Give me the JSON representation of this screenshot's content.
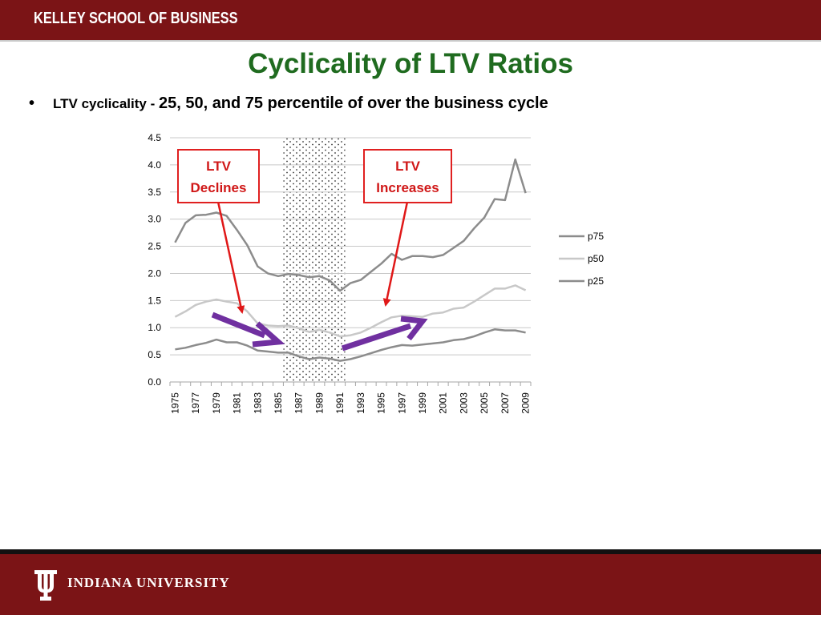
{
  "header": {
    "school": "KELLEY SCHOOL OF BUSINESS"
  },
  "title": "Cyclicality of LTV Ratios",
  "bullet": {
    "marker": "•",
    "lead": "LTV cyclicality - ",
    "rest": "25, 50, and 75 percentile of over the business cycle"
  },
  "callouts": {
    "left": {
      "line1": "LTV",
      "line2": "Declines"
    },
    "right": {
      "line1": "LTV",
      "line2": "Increases"
    }
  },
  "footer": {
    "university": "INDIANA UNIVERSITY"
  },
  "colors": {
    "brand": "#7b1416",
    "title": "#1f6b1f",
    "callout": "#e02020",
    "arrow_red": "#e01818",
    "arrow_purple": "#7030a0",
    "p75": "#8c8c8c",
    "p50": "#c8c8c8",
    "p25": "#8c8c8c"
  },
  "chart_data": {
    "type": "line",
    "title": "",
    "xlabel": "",
    "ylabel": "",
    "x": [
      1975,
      1976,
      1977,
      1978,
      1979,
      1980,
      1981,
      1982,
      1983,
      1984,
      1985,
      1986,
      1987,
      1988,
      1989,
      1990,
      1991,
      1992,
      1993,
      1994,
      1995,
      1996,
      1997,
      1998,
      1999,
      2000,
      2001,
      2002,
      2003,
      2004,
      2005,
      2006,
      2007,
      2008,
      2009
    ],
    "xticks": [
      "1975",
      "1977",
      "1979",
      "1981",
      "1983",
      "1985",
      "1987",
      "1989",
      "1991",
      "1993",
      "1995",
      "1997",
      "1999",
      "2001",
      "2003",
      "2005",
      "2007",
      "2009"
    ],
    "yticks": [
      "0.0",
      "0.5",
      "1.0",
      "1.5",
      "2.0",
      "2.5",
      "3.0",
      "3.5",
      "4.0",
      "4.5"
    ],
    "ylim": [
      0,
      4.5
    ],
    "grid": "horizontal",
    "legend_position": "right",
    "shaded_region": [
      1986,
      1991
    ],
    "series": [
      {
        "name": "p75",
        "values": [
          2.57,
          2.93,
          3.07,
          3.08,
          3.12,
          3.06,
          2.8,
          2.52,
          2.13,
          2.0,
          1.95,
          1.99,
          1.97,
          1.93,
          1.95,
          1.87,
          1.68,
          1.82,
          1.88,
          2.03,
          2.18,
          2.36,
          2.25,
          2.32,
          2.32,
          2.3,
          2.34,
          2.47,
          2.6,
          2.83,
          3.03,
          3.37,
          3.35,
          4.1,
          3.48
        ]
      },
      {
        "name": "p50",
        "values": [
          1.2,
          1.3,
          1.42,
          1.48,
          1.52,
          1.48,
          1.45,
          1.3,
          1.08,
          1.04,
          1.03,
          1.04,
          0.99,
          0.92,
          0.96,
          0.91,
          0.84,
          0.86,
          0.91,
          1.0,
          1.1,
          1.19,
          1.22,
          1.21,
          1.2,
          1.26,
          1.28,
          1.35,
          1.37,
          1.48,
          1.6,
          1.72,
          1.72,
          1.78,
          1.69
        ]
      },
      {
        "name": "p25",
        "values": [
          0.6,
          0.63,
          0.68,
          0.72,
          0.78,
          0.73,
          0.73,
          0.67,
          0.58,
          0.56,
          0.54,
          0.54,
          0.47,
          0.42,
          0.45,
          0.43,
          0.39,
          0.42,
          0.47,
          0.53,
          0.59,
          0.64,
          0.68,
          0.67,
          0.69,
          0.71,
          0.73,
          0.77,
          0.79,
          0.84,
          0.91,
          0.97,
          0.95,
          0.95,
          0.91
        ]
      }
    ]
  }
}
